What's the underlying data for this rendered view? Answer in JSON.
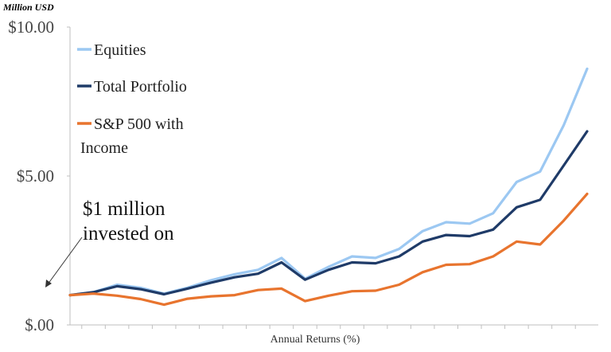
{
  "chart_data": {
    "type": "line",
    "unit_label": "Million USD",
    "xlabel": "Annual Returns (%)",
    "ylabel": "",
    "ylim": [
      0,
      10
    ],
    "y_ticks": [
      0,
      5,
      10
    ],
    "y_tick_labels": [
      "$.00",
      "$5.00",
      "$10.00"
    ],
    "grid": false,
    "legend": "top-left",
    "x": [
      0,
      1,
      2,
      3,
      4,
      5,
      6,
      7,
      8,
      9,
      10,
      11,
      12,
      13,
      14,
      15,
      16,
      17,
      18,
      19,
      20,
      21,
      22
    ],
    "series": [
      {
        "name": "Equities",
        "color": "#9cc8f2",
        "values": [
          1.0,
          1.1,
          1.35,
          1.25,
          1.05,
          1.25,
          1.5,
          1.7,
          1.85,
          2.25,
          1.55,
          1.95,
          2.3,
          2.25,
          2.55,
          3.15,
          3.45,
          3.4,
          3.75,
          4.8,
          5.15,
          6.7,
          8.6
        ]
      },
      {
        "name": "Total Portfolio",
        "color": "#1f3b68",
        "values": [
          1.0,
          1.1,
          1.3,
          1.2,
          1.03,
          1.22,
          1.42,
          1.6,
          1.72,
          2.1,
          1.52,
          1.85,
          2.1,
          2.07,
          2.3,
          2.8,
          3.02,
          2.98,
          3.2,
          3.95,
          4.2,
          5.35,
          6.5
        ]
      },
      {
        "name": "S&P 500 with Income",
        "label_lines": [
          "S&P 500 with",
          "Income"
        ],
        "color": "#e8742e",
        "values": [
          1.0,
          1.05,
          0.98,
          0.87,
          0.68,
          0.88,
          0.96,
          1.0,
          1.17,
          1.22,
          0.8,
          0.98,
          1.13,
          1.15,
          1.35,
          1.77,
          2.02,
          2.04,
          2.3,
          2.8,
          2.7,
          3.5,
          4.4
        ]
      }
    ],
    "annotation": {
      "lines": [
        "$1 million",
        "invested on"
      ],
      "arrow_color": "#333333"
    }
  }
}
